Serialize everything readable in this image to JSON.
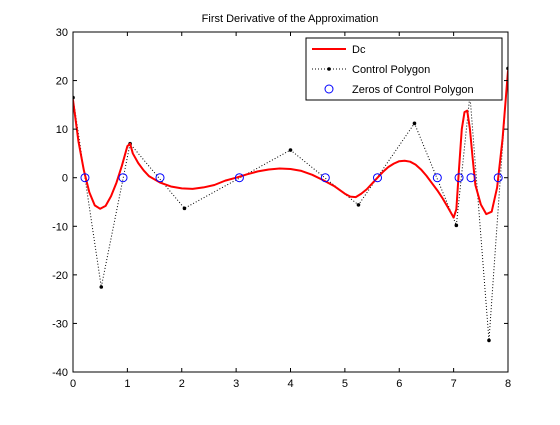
{
  "chart_data": {
    "type": "line",
    "title": "First Derivative of the Approximation",
    "xlabel": "",
    "ylabel": "",
    "xlim": [
      0,
      8
    ],
    "ylim": [
      -40,
      30
    ],
    "xticks": [
      0,
      1,
      2,
      3,
      4,
      5,
      6,
      7,
      8
    ],
    "yticks": [
      30,
      20,
      10,
      0,
      -10,
      -20,
      -30,
      -40
    ],
    "grid": false,
    "legend_position": "top-right",
    "series": [
      {
        "name": "Dc",
        "style": "solid",
        "color": "#ff0000",
        "x": [
          0.0,
          0.1,
          0.2,
          0.3,
          0.4,
          0.5,
          0.6,
          0.7,
          0.8,
          0.9,
          1.0,
          1.05,
          1.1,
          1.2,
          1.3,
          1.4,
          1.6,
          1.8,
          2.0,
          2.2,
          2.4,
          2.6,
          2.8,
          3.0,
          3.2,
          3.4,
          3.6,
          3.8,
          4.0,
          4.2,
          4.4,
          4.6,
          4.8,
          5.0,
          5.1,
          5.2,
          5.3,
          5.4,
          5.5,
          5.6,
          5.7,
          5.8,
          5.9,
          6.0,
          6.1,
          6.2,
          6.3,
          6.4,
          6.5,
          6.6,
          6.7,
          6.8,
          6.9,
          7.0,
          7.05,
          7.1,
          7.15,
          7.2,
          7.25,
          7.3,
          7.35,
          7.4,
          7.5,
          7.6,
          7.7,
          7.8,
          7.9,
          8.0
        ],
        "y": [
          16.0,
          7.5,
          1.5,
          -3.0,
          -5.7,
          -6.4,
          -5.8,
          -3.8,
          -1.0,
          2.5,
          6.5,
          7.0,
          5.0,
          3.0,
          1.5,
          0.3,
          -1.0,
          -1.8,
          -2.2,
          -2.3,
          -2.0,
          -1.5,
          -0.6,
          0.0,
          0.7,
          1.3,
          1.7,
          1.9,
          1.8,
          1.4,
          0.6,
          -0.5,
          -1.7,
          -3.3,
          -3.9,
          -4.0,
          -3.3,
          -2.4,
          -1.2,
          0.0,
          1.2,
          2.2,
          2.9,
          3.4,
          3.5,
          3.3,
          2.7,
          1.7,
          0.4,
          -1.1,
          -2.6,
          -4.3,
          -6.2,
          -8.2,
          -6.5,
          2.0,
          10.0,
          13.5,
          13.8,
          10.0,
          4.0,
          -1.5,
          -5.5,
          -7.5,
          -7.0,
          -2.0,
          8.0,
          22.0
        ]
      },
      {
        "name": "Control Polygon",
        "style": "dotted",
        "marker": "dot",
        "color": "#000000",
        "x": [
          0.0,
          0.52,
          1.05,
          2.05,
          4.0,
          5.25,
          6.28,
          7.05,
          7.3,
          7.65,
          8.0
        ],
        "y": [
          16.5,
          -22.5,
          7.0,
          -6.3,
          5.7,
          -5.6,
          11.2,
          -9.8,
          17.0,
          -33.5,
          22.5
        ]
      },
      {
        "name": "Zeros of Control Polygon",
        "style": "none",
        "marker": "circle",
        "color": "#0000ff",
        "x": [
          0.22,
          0.92,
          1.6,
          3.06,
          4.64,
          5.6,
          6.7,
          7.1,
          7.32,
          7.82
        ],
        "y": [
          0,
          0,
          0,
          0,
          0,
          0,
          0,
          0,
          0,
          0
        ]
      }
    ]
  }
}
